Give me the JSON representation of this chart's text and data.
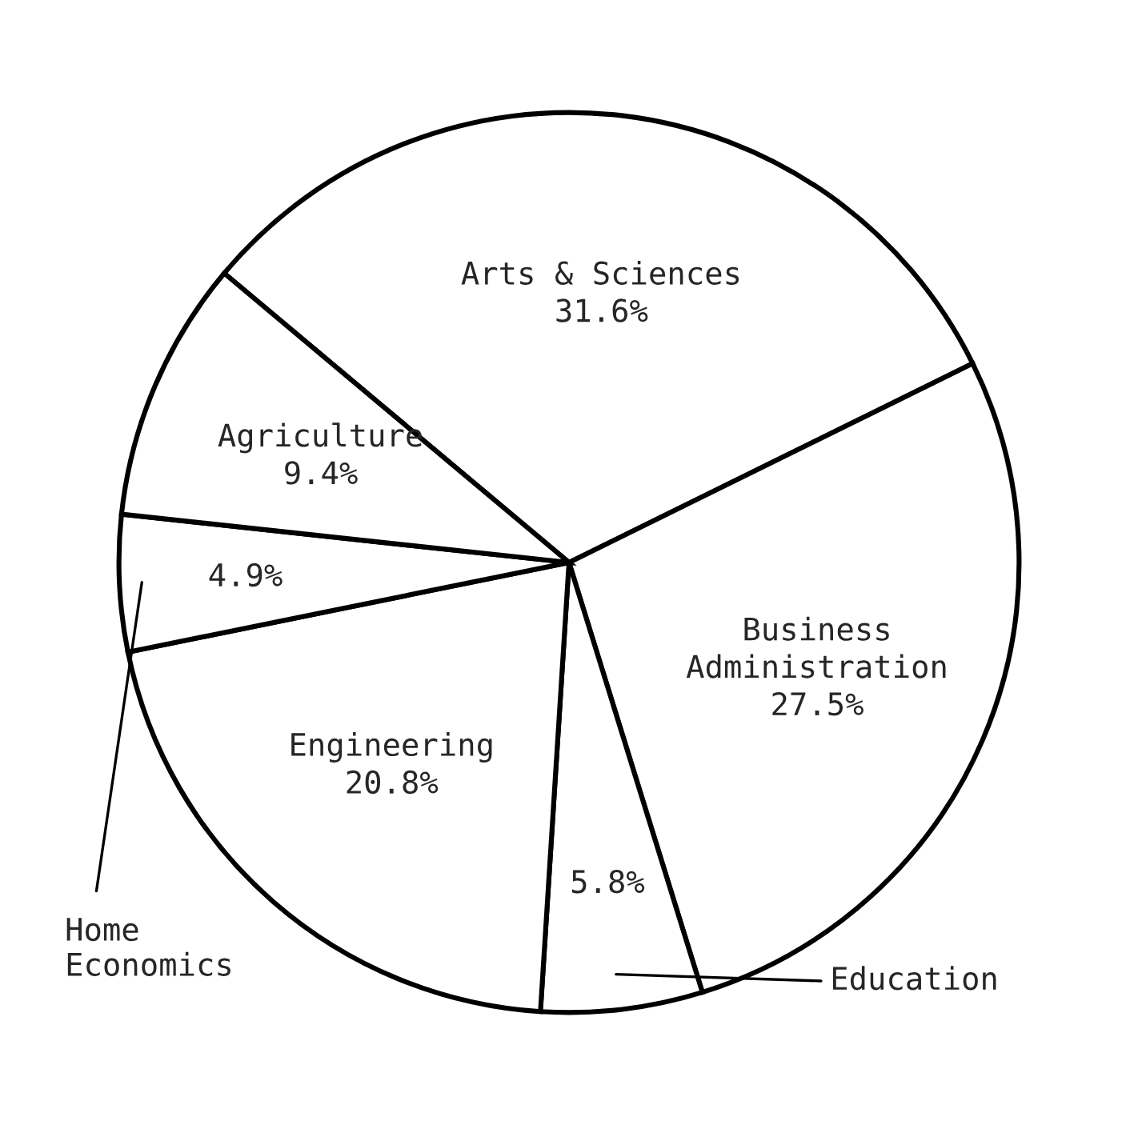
{
  "chart_data": {
    "type": "pie",
    "categories": [
      "Arts & Sciences",
      "Business\nAdministration",
      "Education",
      "Engineering",
      "Home\nEconomics",
      "Agriculture"
    ],
    "values": [
      31.6,
      27.5,
      5.8,
      20.8,
      4.9,
      9.4
    ],
    "colors": [
      "#ffffff",
      "#ffffff",
      "#ffffff",
      "#ffffff",
      "#ffffff",
      "#ffffff"
    ],
    "value_labels": [
      "31.6%",
      "27.5%",
      "5.8%",
      "20.8%",
      "4.9%",
      "9.4%"
    ]
  }
}
